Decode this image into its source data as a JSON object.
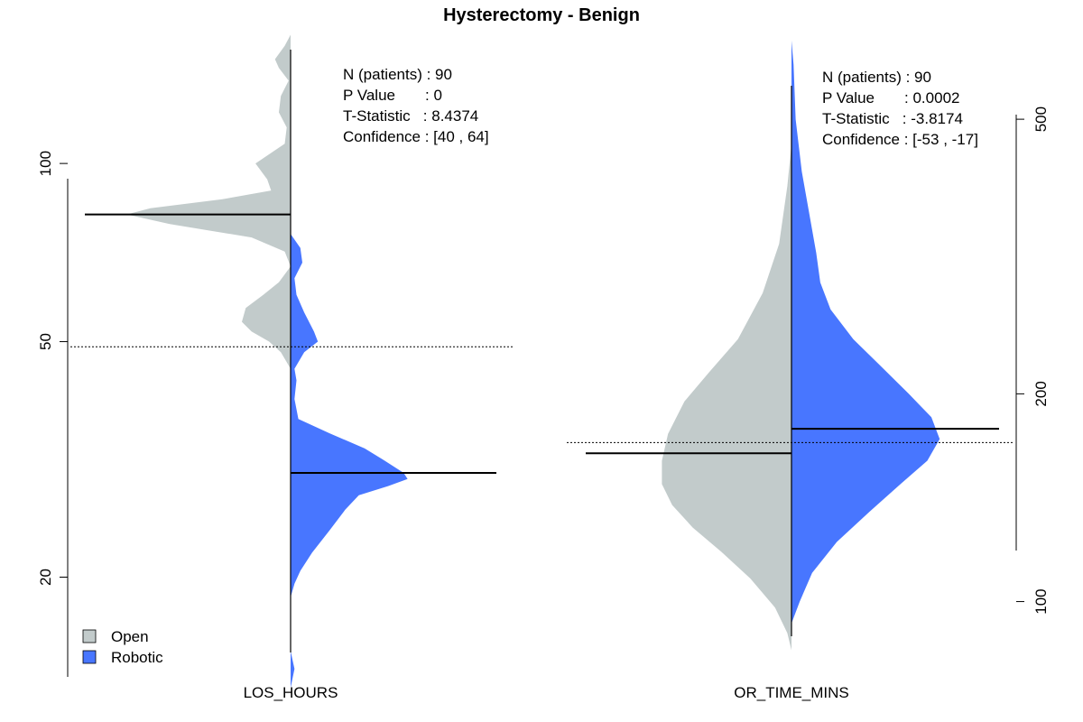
{
  "chart_data": {
    "type": "split-violin",
    "title": "Hysterectomy - Benign",
    "legend": {
      "placement": "bottom-left",
      "entries": [
        {
          "name": "Open",
          "color": "#C2CBCB"
        },
        {
          "name": "Robotic",
          "color": "#4876FF"
        }
      ]
    },
    "panels": [
      {
        "xlabel": "LOS_HOURS",
        "axis_side": "left",
        "scale": "log",
        "ylim": [
          12,
          170
        ],
        "yticks": [
          20,
          50,
          100
        ],
        "overall_mean": 49,
        "stats_lines": [
          "N (patients) : 90",
          "P Value       : 0",
          "T-Statistic   : 8.4374",
          "Confidence : [40 , 64]"
        ],
        "groups": [
          {
            "name": "Open",
            "side": "left",
            "mean": 82,
            "mean_line_width": 1.0,
            "density": [
              [
                165,
                0.0
              ],
              [
                158,
                0.03
              ],
              [
                150,
                0.08
              ],
              [
                145,
                0.06
              ],
              [
                138,
                0.01
              ],
              [
                130,
                0.05
              ],
              [
                122,
                0.06
              ],
              [
                115,
                0.02
              ],
              [
                108,
                0.03
              ],
              [
                100,
                0.18
              ],
              [
                94,
                0.12
              ],
              [
                90,
                0.1
              ],
              [
                87,
                0.35
              ],
              [
                84,
                0.72
              ],
              [
                82,
                0.84
              ],
              [
                79,
                0.62
              ],
              [
                75,
                0.2
              ],
              [
                71,
                0.03
              ],
              [
                67,
                0.0
              ],
              [
                63,
                0.06
              ],
              [
                60,
                0.14
              ],
              [
                57,
                0.23
              ],
              [
                54,
                0.25
              ],
              [
                52,
                0.2
              ],
              [
                50,
                0.11
              ],
              [
                48,
                0.05
              ],
              [
                45,
                0.0
              ]
            ]
          },
          {
            "name": "Robotic",
            "side": "right",
            "mean": 30,
            "mean_line_width": 1.0,
            "density": [
              [
                76,
                0.0
              ],
              [
                72,
                0.05
              ],
              [
                68,
                0.06
              ],
              [
                64,
                0.02
              ],
              [
                60,
                0.03
              ],
              [
                56,
                0.07
              ],
              [
                52,
                0.12
              ],
              [
                50,
                0.14
              ],
              [
                48,
                0.07
              ],
              [
                45,
                0.02
              ],
              [
                43,
                0.03
              ],
              [
                40,
                0.02
              ],
              [
                37,
                0.04
              ],
              [
                35,
                0.2
              ],
              [
                33,
                0.38
              ],
              [
                31.5,
                0.48
              ],
              [
                30,
                0.58
              ],
              [
                29.3,
                0.6
              ],
              [
                28.5,
                0.5
              ],
              [
                27.5,
                0.35
              ],
              [
                26,
                0.28
              ],
              [
                24,
                0.2
              ],
              [
                22,
                0.11
              ],
              [
                20.5,
                0.05
              ],
              [
                19.5,
                0.02
              ],
              [
                18.5,
                0.0
              ],
              [
                17,
                0.0
              ],
              [
                15,
                0.0
              ],
              [
                14,
                0.02
              ],
              [
                13,
                0.0
              ]
            ]
          }
        ]
      },
      {
        "xlabel": "OR_TIME_MINS",
        "axis_side": "right",
        "scale": "log",
        "ylim": [
          70,
          680
        ],
        "yticks": [
          100,
          200,
          500
        ],
        "overall_mean": 170,
        "stats_lines": [
          "N (patients) : 90",
          "P Value       : 0.0002",
          "T-Statistic   : -3.8174",
          "Confidence : [-53 , -17]"
        ],
        "groups": [
          {
            "name": "Open",
            "side": "left",
            "mean": 164,
            "mean_line_width": 1.0,
            "density": [
              [
                460,
                0.0
              ],
              [
                400,
                0.02
              ],
              [
                330,
                0.06
              ],
              [
                280,
                0.14
              ],
              [
                240,
                0.26
              ],
              [
                215,
                0.4
              ],
              [
                195,
                0.52
              ],
              [
                175,
                0.6
              ],
              [
                160,
                0.63
              ],
              [
                148,
                0.63
              ],
              [
                138,
                0.58
              ],
              [
                128,
                0.48
              ],
              [
                118,
                0.34
              ],
              [
                108,
                0.2
              ],
              [
                98,
                0.08
              ],
              [
                90,
                0.02
              ],
              [
                85,
                0.0
              ],
              [
                80,
                0.0
              ],
              [
                75,
                0.0
              ]
            ]
          },
          {
            "name": "Robotic",
            "side": "right",
            "mean": 178,
            "mean_line_width": 1.0,
            "density": [
              [
                650,
                0.0
              ],
              [
                600,
                0.01
              ],
              [
                500,
                0.02
              ],
              [
                420,
                0.05
              ],
              [
                360,
                0.09
              ],
              [
                320,
                0.12
              ],
              [
                290,
                0.14
              ],
              [
                265,
                0.19
              ],
              [
                240,
                0.3
              ],
              [
                220,
                0.43
              ],
              [
                200,
                0.57
              ],
              [
                185,
                0.68
              ],
              [
                172,
                0.72
              ],
              [
                160,
                0.66
              ],
              [
                148,
                0.53
              ],
              [
                135,
                0.38
              ],
              [
                122,
                0.22
              ],
              [
                110,
                0.1
              ],
              [
                100,
                0.04
              ],
              [
                93,
                0.0
              ]
            ]
          }
        ]
      }
    ]
  }
}
